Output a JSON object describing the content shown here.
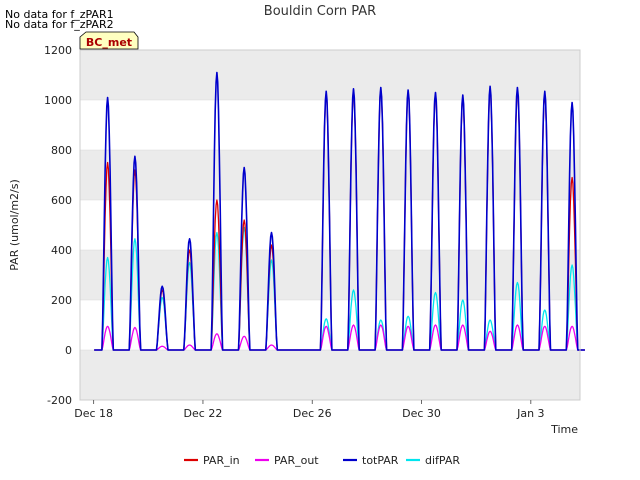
{
  "notes": [
    "No data for f_zPAR1",
    "No data for f_zPAR2"
  ],
  "badge": "BC_met",
  "colors": {
    "PAR_in": "#dd0000",
    "PAR_out": "#ee00ee",
    "totPAR": "#0000cc",
    "difPAR": "#00e5ee",
    "band": "#ebebeb",
    "grid": "#d9d9d9",
    "badge_bg": "#ffffc0",
    "badge_text": "#aa0000"
  },
  "chart_data": {
    "type": "line",
    "title": "Bouldin Corn PAR",
    "xlabel": "Time",
    "ylabel": "PAR (umol/m2/s)",
    "xlim": [
      -0.5,
      17.8
    ],
    "ylim": [
      -200,
      1200
    ],
    "x_unit": "days since Dec 18",
    "yticks": [
      -200,
      0,
      200,
      400,
      600,
      800,
      1000,
      1200
    ],
    "xticks": [
      {
        "value": 0,
        "label": "Dec 18"
      },
      {
        "value": 4,
        "label": "Dec 22"
      },
      {
        "value": 8,
        "label": "Dec 26"
      },
      {
        "value": 12,
        "label": "Dec 30"
      },
      {
        "value": 16,
        "label": "Jan 3"
      }
    ],
    "legend": [
      "PAR_in",
      "PAR_out",
      "totPAR",
      "difPAR"
    ],
    "daily_peaks": {
      "days": [
        0,
        1,
        2,
        3,
        4,
        5,
        6,
        7,
        8,
        9,
        10,
        11,
        12,
        13,
        14,
        15,
        16,
        17
      ],
      "totPAR": [
        1010,
        775,
        255,
        445,
        1110,
        730,
        470,
        0,
        1035,
        1045,
        1050,
        1040,
        1030,
        1020,
        1055,
        1050,
        1035,
        990
      ],
      "PAR_in": [
        750,
        720,
        240,
        400,
        600,
        520,
        420,
        0,
        1025,
        1040,
        1045,
        1035,
        1025,
        1010,
        1045,
        1040,
        1020,
        690
      ],
      "PAR_out": [
        95,
        90,
        15,
        20,
        65,
        55,
        20,
        0,
        95,
        100,
        100,
        95,
        100,
        100,
        75,
        100,
        95,
        95
      ],
      "difPAR": [
        370,
        445,
        210,
        350,
        470,
        490,
        360,
        0,
        125,
        240,
        120,
        135,
        230,
        200,
        120,
        270,
        160,
        340
      ]
    }
  }
}
